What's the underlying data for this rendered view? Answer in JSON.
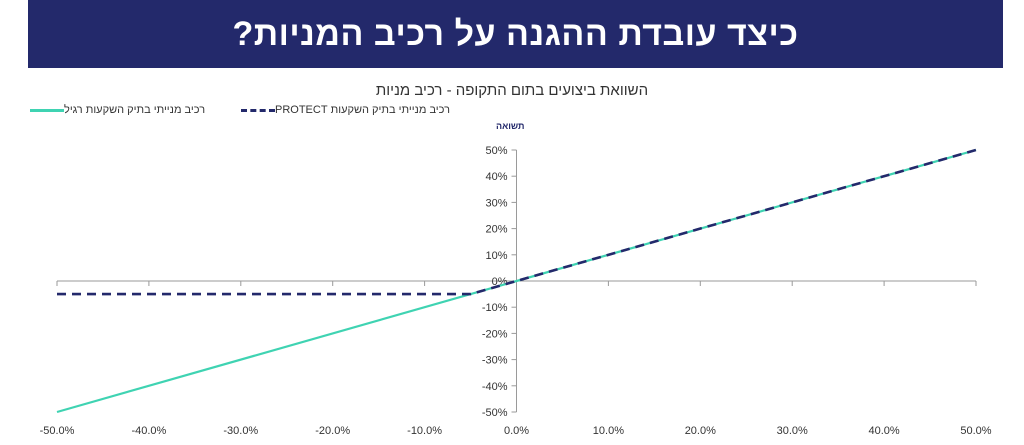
{
  "banner": {
    "title": "כיצד עובדת ההגנה על רכיב המניות?"
  },
  "colors": {
    "banner_bg": "#23296b",
    "protect_series": "#23296b",
    "regular_series": "#3fd3b2",
    "axis": "#9a9a9a"
  },
  "chart_data": {
    "type": "line",
    "title": "השוואת ביצועים בתום התקופה - רכיב מניות",
    "ylabel": "תשואה",
    "xlabel": "",
    "xlim": [
      -0.5,
      0.5
    ],
    "ylim": [
      -0.5,
      0.5
    ],
    "grid": false,
    "legend_position": "top-left",
    "x_ticks": [
      "-50.0%",
      "-40.0%",
      "-30.0%",
      "-20.0%",
      "-10.0%",
      "0.0%",
      "10.0%",
      "20.0%",
      "30.0%",
      "40.0%",
      "50.0%"
    ],
    "y_ticks": [
      "50%",
      "40%",
      "30%",
      "20%",
      "10%",
      "0%",
      "-10%",
      "-20%",
      "-30%",
      "-40%",
      "-50%"
    ],
    "series": [
      {
        "name": "רכיב מנייתי בתיק השקעות PROTECT",
        "style": "dashed",
        "x": [
          -0.5,
          -0.05,
          0.5
        ],
        "y": [
          -0.05,
          -0.05,
          0.5
        ]
      },
      {
        "name": "רכיב מנייתי בתיק השקעות רגיל",
        "style": "solid",
        "x": [
          -0.5,
          0.5
        ],
        "y": [
          -0.5,
          0.5
        ]
      }
    ]
  }
}
